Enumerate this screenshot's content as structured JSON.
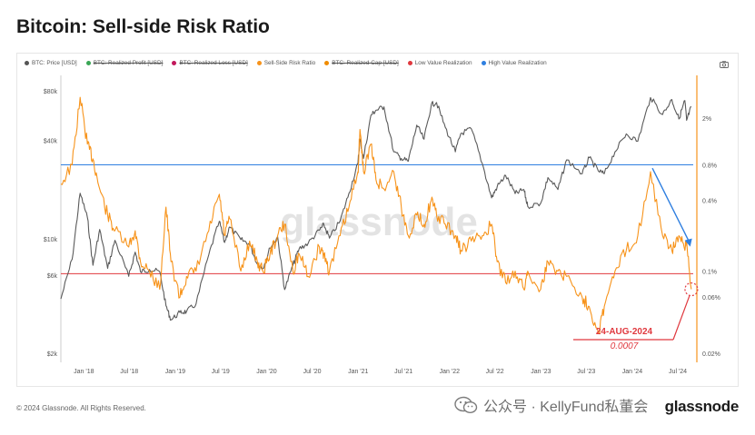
{
  "page": {
    "title": "Bitcoin: Sell-side Risk Ratio",
    "footer_copyright": "© 2024 Glassnode. All Rights Reserved.",
    "brand": "glassnode",
    "social_watermark": "公众号 · KellyFund私董会",
    "chart_watermark": "glassnode"
  },
  "legend": [
    {
      "label": "BTC: Price [USD]",
      "color": "#555555",
      "struck": false
    },
    {
      "label": "BTC: Realized Profit [USD]",
      "color": "#3aa655",
      "struck": true
    },
    {
      "label": "BTC: Realized Loss [USD]",
      "color": "#c2185b",
      "struck": true
    },
    {
      "label": "Sell-Side Risk Ratio",
      "color": "#f7931a",
      "struck": false
    },
    {
      "label": "BTC: Realized Cap [USD]",
      "color": "#f08c00",
      "struck": true
    },
    {
      "label": "Low Value Realization",
      "color": "#e0383e",
      "struck": false
    },
    {
      "label": "High Value Realization",
      "color": "#2f7fe0",
      "struck": false
    }
  ],
  "colors": {
    "price": "#5a5a5a",
    "ratio": "#f7931a",
    "low_line": "#e0383e",
    "high_line": "#2f7fe0",
    "annotation": "#e0383e",
    "arrow": "#2f7fe0"
  },
  "chart_data": {
    "type": "line",
    "title": "Bitcoin: Sell-side Risk Ratio",
    "x_ticks": [
      "Jan '18",
      "Jul '18",
      "Jan '19",
      "Jul '19",
      "Jan '20",
      "Jul '20",
      "Jan '21",
      "Jul '21",
      "Jan '22",
      "Jul '22",
      "Jan '23",
      "Jul '23",
      "Jan '24",
      "Jul '24"
    ],
    "x_range": [
      "2017-10-01",
      "2024-09-15"
    ],
    "left_axis": {
      "scale": "log",
      "ticks": [
        "$2k",
        "$6k",
        "$10k",
        "$40k",
        "$80k"
      ],
      "tick_values": [
        2000,
        6000,
        10000,
        40000,
        80000
      ],
      "range": [
        2000,
        90000
      ]
    },
    "right_axis": {
      "scale": "log",
      "ticks": [
        "0.02%",
        "0.06%",
        "0.1%",
        "0.4%",
        "0.8%",
        "2%"
      ],
      "tick_values": [
        0.02,
        0.06,
        0.1,
        0.4,
        0.8,
        2
      ],
      "range": [
        0.02,
        4
      ]
    },
    "series": [
      {
        "name": "BTC: Price [USD]",
        "axis": "left",
        "points": [
          [
            "2017-10-01",
            4300
          ],
          [
            "2017-11-15",
            7500
          ],
          [
            "2017-12-17",
            19000
          ],
          [
            "2018-01-15",
            13500
          ],
          [
            "2018-02-06",
            6900
          ],
          [
            "2018-03-05",
            11400
          ],
          [
            "2018-04-06",
            6600
          ],
          [
            "2018-05-05",
            9800
          ],
          [
            "2018-06-29",
            5900
          ],
          [
            "2018-07-25",
            8300
          ],
          [
            "2018-08-15",
            6300
          ],
          [
            "2018-09-20",
            6500
          ],
          [
            "2018-10-31",
            6300
          ],
          [
            "2018-11-25",
            3900
          ],
          [
            "2018-12-15",
            3200
          ],
          [
            "2019-01-20",
            3550
          ],
          [
            "2019-02-15",
            3600
          ],
          [
            "2019-03-25",
            4000
          ],
          [
            "2019-05-15",
            8000
          ],
          [
            "2019-06-26",
            12800
          ],
          [
            "2019-07-17",
            9500
          ],
          [
            "2019-08-06",
            11800
          ],
          [
            "2019-09-20",
            9900
          ],
          [
            "2019-10-25",
            9300
          ],
          [
            "2019-11-25",
            7000
          ],
          [
            "2019-12-17",
            6600
          ],
          [
            "2020-01-15",
            8800
          ],
          [
            "2020-02-14",
            10300
          ],
          [
            "2020-03-13",
            4900
          ],
          [
            "2020-04-15",
            6900
          ],
          [
            "2020-05-10",
            8700
          ],
          [
            "2020-06-15",
            9400
          ],
          [
            "2020-07-30",
            11300
          ],
          [
            "2020-08-17",
            12200
          ],
          [
            "2020-09-08",
            10100
          ],
          [
            "2020-10-21",
            12900
          ],
          [
            "2020-11-25",
            19000
          ],
          [
            "2020-12-31",
            29000
          ],
          [
            "2021-01-08",
            40800
          ],
          [
            "2021-01-22",
            31000
          ],
          [
            "2021-02-21",
            57000
          ],
          [
            "2021-03-13",
            61000
          ],
          [
            "2021-04-14",
            64000
          ],
          [
            "2021-05-23",
            34000
          ],
          [
            "2021-06-22",
            31000
          ],
          [
            "2021-07-20",
            29800
          ],
          [
            "2021-08-23",
            49500
          ],
          [
            "2021-09-21",
            40600
          ],
          [
            "2021-10-20",
            66000
          ],
          [
            "2021-11-10",
            68000
          ],
          [
            "2021-12-15",
            48000
          ],
          [
            "2022-01-24",
            34000
          ],
          [
            "2022-02-15",
            44000
          ],
          [
            "2022-03-29",
            47000
          ],
          [
            "2022-05-12",
            28800
          ],
          [
            "2022-06-18",
            17800
          ],
          [
            "2022-07-10",
            20800
          ],
          [
            "2022-08-13",
            24400
          ],
          [
            "2022-09-20",
            18900
          ],
          [
            "2022-10-25",
            20000
          ],
          [
            "2022-11-09",
            15800
          ],
          [
            "2022-12-31",
            16500
          ],
          [
            "2023-01-29",
            23700
          ],
          [
            "2023-03-10",
            20000
          ],
          [
            "2023-04-14",
            30400
          ],
          [
            "2023-06-15",
            25000
          ],
          [
            "2023-07-13",
            31300
          ],
          [
            "2023-08-18",
            26000
          ],
          [
            "2023-09-11",
            25000
          ],
          [
            "2023-10-24",
            34000
          ],
          [
            "2023-12-08",
            43800
          ],
          [
            "2024-01-23",
            39500
          ],
          [
            "2024-03-14",
            73000
          ],
          [
            "2024-05-01",
            57500
          ],
          [
            "2024-06-07",
            71000
          ],
          [
            "2024-07-05",
            54000
          ],
          [
            "2024-07-29",
            70000
          ],
          [
            "2024-08-05",
            53000
          ],
          [
            "2024-08-24",
            64000
          ]
        ]
      },
      {
        "name": "Sell-Side Risk Ratio",
        "axis": "right",
        "points": [
          [
            "2017-10-01",
            0.55
          ],
          [
            "2017-11-15",
            0.8
          ],
          [
            "2017-12-17",
            3.0
          ],
          [
            "2018-01-15",
            1.2
          ],
          [
            "2018-02-06",
            0.9
          ],
          [
            "2018-03-05",
            0.5
          ],
          [
            "2018-04-06",
            0.3
          ],
          [
            "2018-05-05",
            0.22
          ],
          [
            "2018-06-29",
            0.16
          ],
          [
            "2018-07-25",
            0.22
          ],
          [
            "2018-08-15",
            0.12
          ],
          [
            "2018-09-20",
            0.1
          ],
          [
            "2018-10-31",
            0.07
          ],
          [
            "2018-11-25",
            0.35
          ],
          [
            "2018-12-15",
            0.12
          ],
          [
            "2019-01-20",
            0.06
          ],
          [
            "2019-02-15",
            0.09
          ],
          [
            "2019-03-25",
            0.1
          ],
          [
            "2019-05-15",
            0.22
          ],
          [
            "2019-06-26",
            0.45
          ],
          [
            "2019-07-17",
            0.2
          ],
          [
            "2019-08-06",
            0.28
          ],
          [
            "2019-09-20",
            0.1
          ],
          [
            "2019-10-25",
            0.18
          ],
          [
            "2019-11-25",
            0.12
          ],
          [
            "2019-12-17",
            0.1
          ],
          [
            "2020-01-15",
            0.14
          ],
          [
            "2020-02-14",
            0.2
          ],
          [
            "2020-03-13",
            0.25
          ],
          [
            "2020-04-15",
            0.1
          ],
          [
            "2020-05-10",
            0.14
          ],
          [
            "2020-06-15",
            0.09
          ],
          [
            "2020-07-30",
            0.16
          ],
          [
            "2020-08-17",
            0.14
          ],
          [
            "2020-09-08",
            0.1
          ],
          [
            "2020-10-21",
            0.2
          ],
          [
            "2020-11-25",
            0.35
          ],
          [
            "2020-12-31",
            0.7
          ],
          [
            "2021-01-08",
            1.6
          ],
          [
            "2021-01-22",
            0.7
          ],
          [
            "2021-02-21",
            1.2
          ],
          [
            "2021-03-13",
            0.6
          ],
          [
            "2021-04-14",
            0.5
          ],
          [
            "2021-05-23",
            0.7
          ],
          [
            "2021-06-22",
            0.35
          ],
          [
            "2021-07-20",
            0.2
          ],
          [
            "2021-08-23",
            0.3
          ],
          [
            "2021-09-21",
            0.25
          ],
          [
            "2021-10-20",
            0.4
          ],
          [
            "2021-11-10",
            0.3
          ],
          [
            "2021-12-15",
            0.25
          ],
          [
            "2022-01-24",
            0.2
          ],
          [
            "2022-02-15",
            0.15
          ],
          [
            "2022-03-29",
            0.18
          ],
          [
            "2022-05-12",
            0.2
          ],
          [
            "2022-06-18",
            0.25
          ],
          [
            "2022-07-10",
            0.12
          ],
          [
            "2022-08-13",
            0.08
          ],
          [
            "2022-09-20",
            0.1
          ],
          [
            "2022-10-25",
            0.07
          ],
          [
            "2022-11-09",
            0.1
          ],
          [
            "2022-12-31",
            0.07
          ],
          [
            "2023-01-29",
            0.12
          ],
          [
            "2023-03-10",
            0.1
          ],
          [
            "2023-04-14",
            0.09
          ],
          [
            "2023-06-15",
            0.06
          ],
          [
            "2023-07-13",
            0.05
          ],
          [
            "2023-08-18",
            0.03
          ],
          [
            "2023-09-11",
            0.05
          ],
          [
            "2023-10-24",
            0.1
          ],
          [
            "2023-12-08",
            0.15
          ],
          [
            "2024-01-23",
            0.2
          ],
          [
            "2024-03-14",
            0.7
          ],
          [
            "2024-05-01",
            0.2
          ],
          [
            "2024-06-07",
            0.15
          ],
          [
            "2024-07-05",
            0.2
          ],
          [
            "2024-07-29",
            0.15
          ],
          [
            "2024-08-05",
            0.18
          ],
          [
            "2024-08-24",
            0.07
          ]
        ]
      }
    ],
    "reference_lines": [
      {
        "name": "High Value Realization",
        "axis": "right",
        "value": 0.8
      },
      {
        "name": "Low Value Realization",
        "axis": "right",
        "value": 0.095
      }
    ],
    "annotations": [
      {
        "label": "24-AUG-2024",
        "value_text": "0.0007",
        "date": "2024-08-24"
      }
    ],
    "grid": false,
    "legend_position": "top-left"
  }
}
